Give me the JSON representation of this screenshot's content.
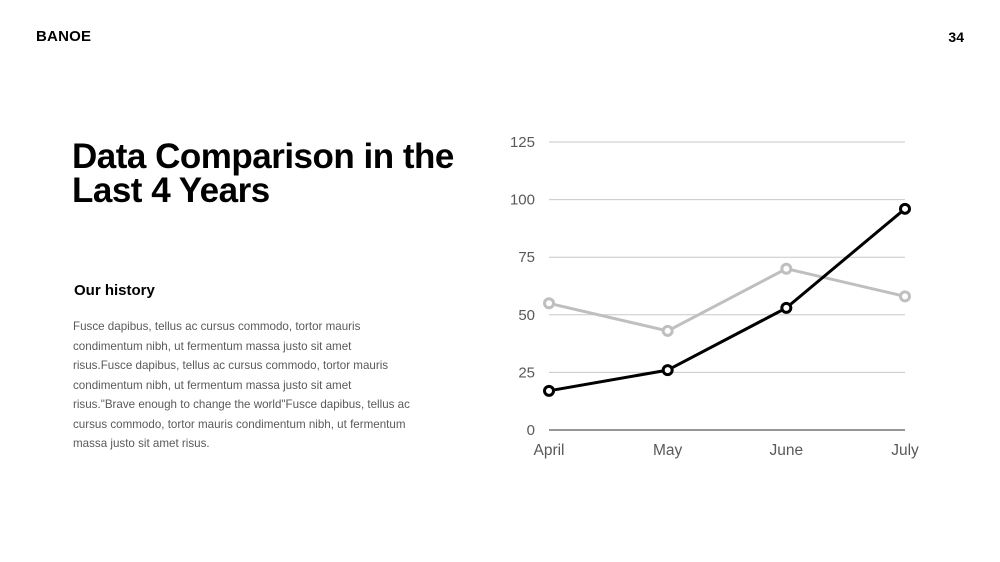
{
  "header": {
    "brand": "BANOE",
    "page_number": "34"
  },
  "content": {
    "title": "Data Comparison in the Last 4 Years",
    "subtitle": "Our history",
    "body": "Fusce dapibus, tellus ac cursus commodo, tortor mauris condimentum nibh, ut fermentum massa justo sit amet risus.Fusce dapibus, tellus ac cursus commodo, tortor mauris condimentum nibh, ut fermentum massa justo sit amet risus.\"Brave enough to change the world\"Fusce dapibus, tellus ac cursus commodo, tortor mauris condimentum nibh, ut fermentum massa justo sit amet risus."
  },
  "chart_data": {
    "type": "line",
    "categories": [
      "April",
      "May",
      "June",
      "July"
    ],
    "series": [
      {
        "color": "#bfbfbf",
        "values": [
          55,
          43,
          70,
          58
        ]
      },
      {
        "color": "#000000",
        "values": [
          17,
          26,
          53,
          96
        ]
      }
    ],
    "yticks": [
      0,
      25,
      50,
      75,
      100,
      125
    ],
    "ylim": [
      0,
      125
    ],
    "grid": true,
    "legend": "none"
  }
}
